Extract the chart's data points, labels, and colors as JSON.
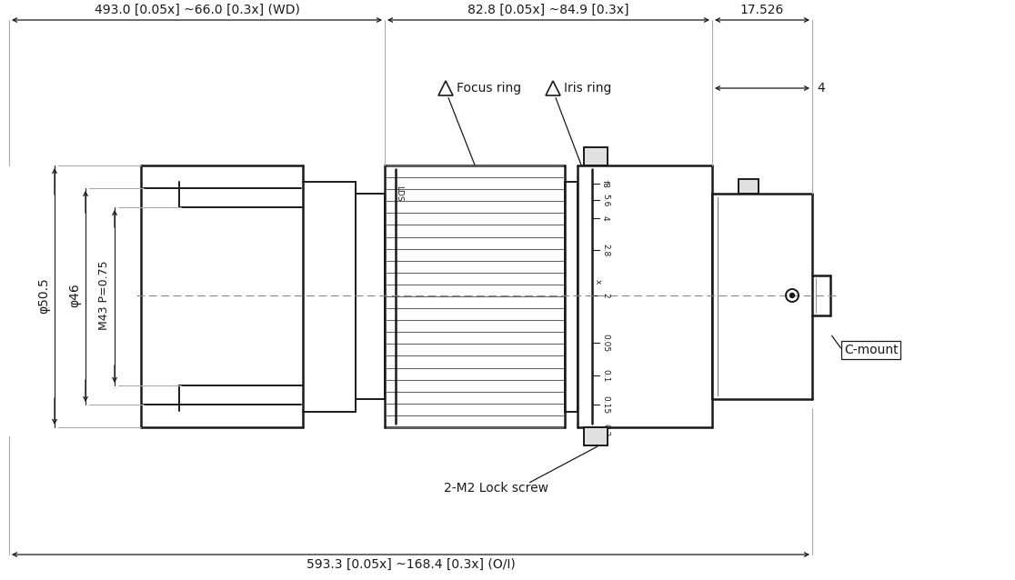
{
  "bg_color": "#ffffff",
  "line_color": "#1a1a1a",
  "annotations": {
    "top_left_dim": "493.0 [0.05x] ~66.0 [0.3x] (WD)",
    "top_mid_dim": "82.8 [0.05x] ~84.9 [0.3x]",
    "top_right_dim": "17.526",
    "right_dim_4": "4",
    "left_phi505": "φ50.5",
    "left_phi46": "φ46",
    "left_m43": "M43 P=0.75",
    "bottom_dim": "593.3 [0.05x] ~168.4 [0.3x] (O/I)",
    "focus_ring": "Focus ring",
    "iris_ring": "Iris ring",
    "lock_screw": "2-M2 Lock screw",
    "c_mount": "C-mount"
  },
  "figsize": [
    11.16,
    6.38
  ],
  "dpi": 100
}
